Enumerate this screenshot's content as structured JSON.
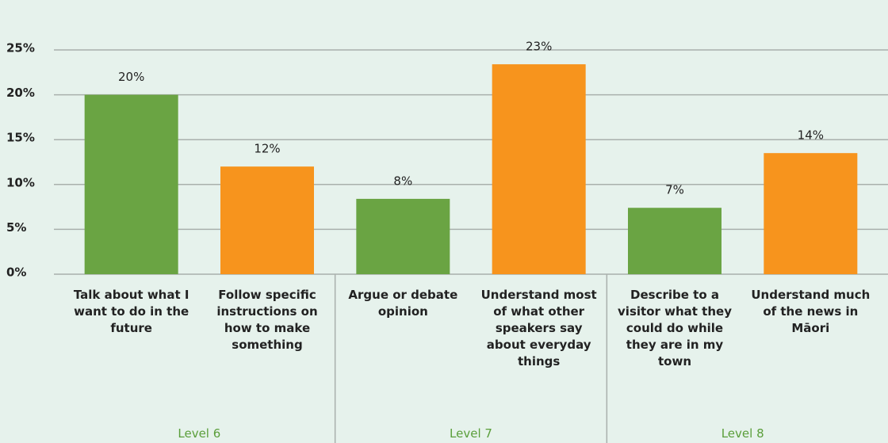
{
  "chart_data": {
    "type": "bar",
    "categories": [
      "Talk about what I want to do in the future",
      "Follow specific instructions on how to make something",
      "Argue or debate opinion",
      "Understand most of what other speakers say about everyday things",
      "Describe to a visitor what they could do while they are in my town",
      "Understand much of the news in Māori"
    ],
    "values": [
      20,
      12,
      8.4,
      23.4,
      7.4,
      13.5
    ],
    "value_labels": [
      "20%",
      "12%",
      "8%",
      "23%",
      "7%",
      "14%"
    ],
    "colors": [
      "#6aa443",
      "#f7941d",
      "#6aa443",
      "#f7941d",
      "#6aa443",
      "#f7941d"
    ],
    "groups": [
      "Level 6",
      "Level 7",
      "Level 8"
    ],
    "ylim": [
      0,
      25
    ],
    "yticks": [
      {
        "value": 0,
        "label": "0%"
      },
      {
        "value": 5,
        "label": "5%"
      },
      {
        "value": 10,
        "label": "10%"
      },
      {
        "value": 15,
        "label": "15%"
      },
      {
        "value": 20,
        "label": "20%"
      },
      {
        "value": 25,
        "label": "25%"
      }
    ],
    "grid": true
  }
}
